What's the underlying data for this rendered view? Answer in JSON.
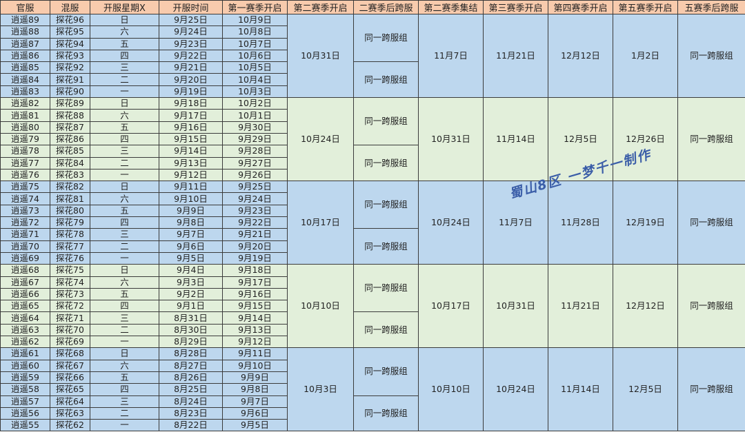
{
  "headers": [
    "官服",
    "混服",
    "开服星期X",
    "开服时间",
    "第一赛季开启",
    "第二赛季开启",
    "二赛季后跨服",
    "第二赛季集结",
    "第三赛季开启",
    "第四赛季开启",
    "第五赛季开启",
    "五赛季后跨服"
  ],
  "colors": {
    "header": "#f8cbad",
    "blue_group": "#bdd7ee",
    "green_group": "#e2efda",
    "watermark": "#3b5ea8"
  },
  "watermark": "蜀山8区 一梦千一制作",
  "groups": [
    {
      "season2": "10月31日",
      "cross_a": "同一跨服组",
      "cross_b": "同一跨服组",
      "rally2": "11月7日",
      "season3": "11月21日",
      "season4": "12月12日",
      "season5": "1月2日",
      "cross5": "同一跨服组",
      "rows": [
        [
          "逍遥89",
          "探花96",
          "日",
          "9月25日",
          "10月9日"
        ],
        [
          "逍遥88",
          "探花95",
          "六",
          "9月24日",
          "10月8日"
        ],
        [
          "逍遥87",
          "探花94",
          "五",
          "9月23日",
          "10月7日"
        ],
        [
          "逍遥86",
          "探花93",
          "四",
          "9月22日",
          "10月6日"
        ],
        [
          "逍遥85",
          "探花92",
          "三",
          "9月21日",
          "10月5日"
        ],
        [
          "逍遥84",
          "探花91",
          "二",
          "9月20日",
          "10月4日"
        ],
        [
          "逍遥83",
          "探花90",
          "一",
          "9月19日",
          "10月3日"
        ]
      ]
    },
    {
      "season2": "10月24日",
      "cross_a": "同一跨服组",
      "cross_b": "同一跨服组",
      "rally2": "10月31日",
      "season3": "11月14日",
      "season4": "12月5日",
      "season5": "12月26日",
      "cross5": "同一跨服组",
      "rows": [
        [
          "逍遥82",
          "探花89",
          "日",
          "9月18日",
          "10月2日"
        ],
        [
          "逍遥81",
          "探花88",
          "六",
          "9月17日",
          "10月1日"
        ],
        [
          "逍遥80",
          "探花87",
          "五",
          "9月16日",
          "9月30日"
        ],
        [
          "逍遥79",
          "探花86",
          "四",
          "9月15日",
          "9月29日"
        ],
        [
          "逍遥78",
          "探花85",
          "三",
          "9月14日",
          "9月28日"
        ],
        [
          "逍遥77",
          "探花84",
          "二",
          "9月13日",
          "9月27日"
        ],
        [
          "逍遥76",
          "探花83",
          "一",
          "9月12日",
          "9月26日"
        ]
      ]
    },
    {
      "season2": "10月17日",
      "cross_a": "同一跨服组",
      "cross_b": "同一跨服组",
      "rally2": "10月24日",
      "season3": "11月7日",
      "season4": "11月28日",
      "season5": "12月19日",
      "cross5": "同一跨服组",
      "rows": [
        [
          "逍遥75",
          "探花82",
          "日",
          "9月11日",
          "9月25日"
        ],
        [
          "逍遥74",
          "探花81",
          "六",
          "9月10日",
          "9月24日"
        ],
        [
          "逍遥73",
          "探花80",
          "五",
          "9月9日",
          "9月23日"
        ],
        [
          "逍遥72",
          "探花79",
          "四",
          "9月8日",
          "9月22日"
        ],
        [
          "逍遥71",
          "探花78",
          "三",
          "9月7日",
          "9月21日"
        ],
        [
          "逍遥70",
          "探花77",
          "二",
          "9月6日",
          "9月20日"
        ],
        [
          "逍遥69",
          "探花76",
          "一",
          "9月5日",
          "9月19日"
        ]
      ]
    },
    {
      "season2": "10月10日",
      "cross_a": "同一跨服组",
      "cross_b": "同一跨服组",
      "rally2": "10月17日",
      "season3": "10月31日",
      "season4": "11月21日",
      "season5": "12月12日",
      "cross5": "同一跨服组",
      "rows": [
        [
          "逍遥68",
          "探花75",
          "日",
          "9月4日",
          "9月18日"
        ],
        [
          "逍遥67",
          "探花74",
          "六",
          "9月3日",
          "9月17日"
        ],
        [
          "逍遥66",
          "探花73",
          "五",
          "9月2日",
          "9月16日"
        ],
        [
          "逍遥65",
          "探花72",
          "四",
          "9月1日",
          "9月15日"
        ],
        [
          "逍遥64",
          "探花71",
          "三",
          "8月31日",
          "9月14日"
        ],
        [
          "逍遥63",
          "探花70",
          "二",
          "8月30日",
          "9月13日"
        ],
        [
          "逍遥62",
          "探花69",
          "一",
          "8月29日",
          "9月12日"
        ]
      ]
    },
    {
      "season2": "10月3日",
      "cross_a": "同一跨服组",
      "cross_b": "同一跨服组",
      "rally2": "10月10日",
      "season3": "10月24日",
      "season4": "11月14日",
      "season5": "12月5日",
      "cross5": "同一跨服组",
      "rows": [
        [
          "逍遥61",
          "探花68",
          "日",
          "8月28日",
          "9月11日"
        ],
        [
          "逍遥60",
          "探花67",
          "六",
          "8月27日",
          "9月10日"
        ],
        [
          "逍遥59",
          "探花66",
          "五",
          "8月26日",
          "9月9日"
        ],
        [
          "逍遥58",
          "探花65",
          "四",
          "8月25日",
          "9月8日"
        ],
        [
          "逍遥57",
          "探花64",
          "三",
          "8月24日",
          "9月7日"
        ],
        [
          "逍遥56",
          "探花63",
          "二",
          "8月23日",
          "9月6日"
        ],
        [
          "逍遥55",
          "探花62",
          "一",
          "8月22日",
          "9月5日"
        ]
      ]
    }
  ]
}
